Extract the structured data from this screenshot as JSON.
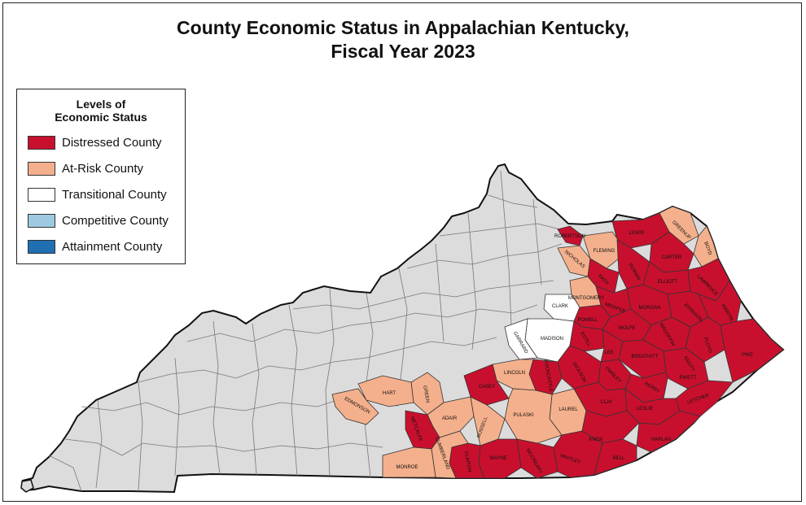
{
  "title": {
    "line1": "County Economic Status in Appalachian Kentucky,",
    "line2": "Fiscal Year 2023"
  },
  "legend": {
    "title_line1": "Levels of",
    "title_line2": "Economic Status",
    "items": [
      {
        "label": "Distressed County",
        "color": "#c8102e"
      },
      {
        "label": "At-Risk County",
        "color": "#f4b08c"
      },
      {
        "label": "Transitional County",
        "color": "#ffffff"
      },
      {
        "label": "Competitive County",
        "color": "#9ecae1"
      },
      {
        "label": "Attainment County",
        "color": "#1f6fb2"
      }
    ]
  },
  "colors": {
    "non_appalachian": "#dcdcdc",
    "state_border": "#111111",
    "county_border": "#666666"
  },
  "counties": {
    "distressed": [
      "ROBERTSON",
      "LEWIS",
      "CARTER",
      "BATH",
      "ROWAN",
      "ELLIOTT",
      "LAWRENCE",
      "MENIFEE",
      "MORGAN",
      "JOHNSON",
      "MARTIN",
      "POWELL",
      "WOLFE",
      "MAGOFFIN",
      "ESTILL",
      "LEE",
      "FLOYD",
      "PIKE",
      "BREATHITT",
      "KNOTT",
      "OWSLEY",
      "PERRY",
      "LETCHER",
      "JACKSON",
      "CLAY",
      "LESLIE",
      "ROCKCASTLE",
      "CASEY",
      "METCALFE",
      "CLINTON",
      "WAYNE",
      "MCCREARY",
      "WHITLEY",
      "KNOX",
      "BELL",
      "HARLAN"
    ],
    "at_risk": [
      "GREENUP",
      "BOYD",
      "FLEMING",
      "NICHOLAS",
      "MONTGOMERY",
      "LINCOLN",
      "HART",
      "GREEN",
      "EDMONSON",
      "ADAIR",
      "RUSSELL",
      "PULASKI",
      "LAUREL",
      "MONROE",
      "CUMBERLAND"
    ],
    "transitional": [
      "CLARK",
      "MADISON",
      "GARRARD"
    ]
  }
}
